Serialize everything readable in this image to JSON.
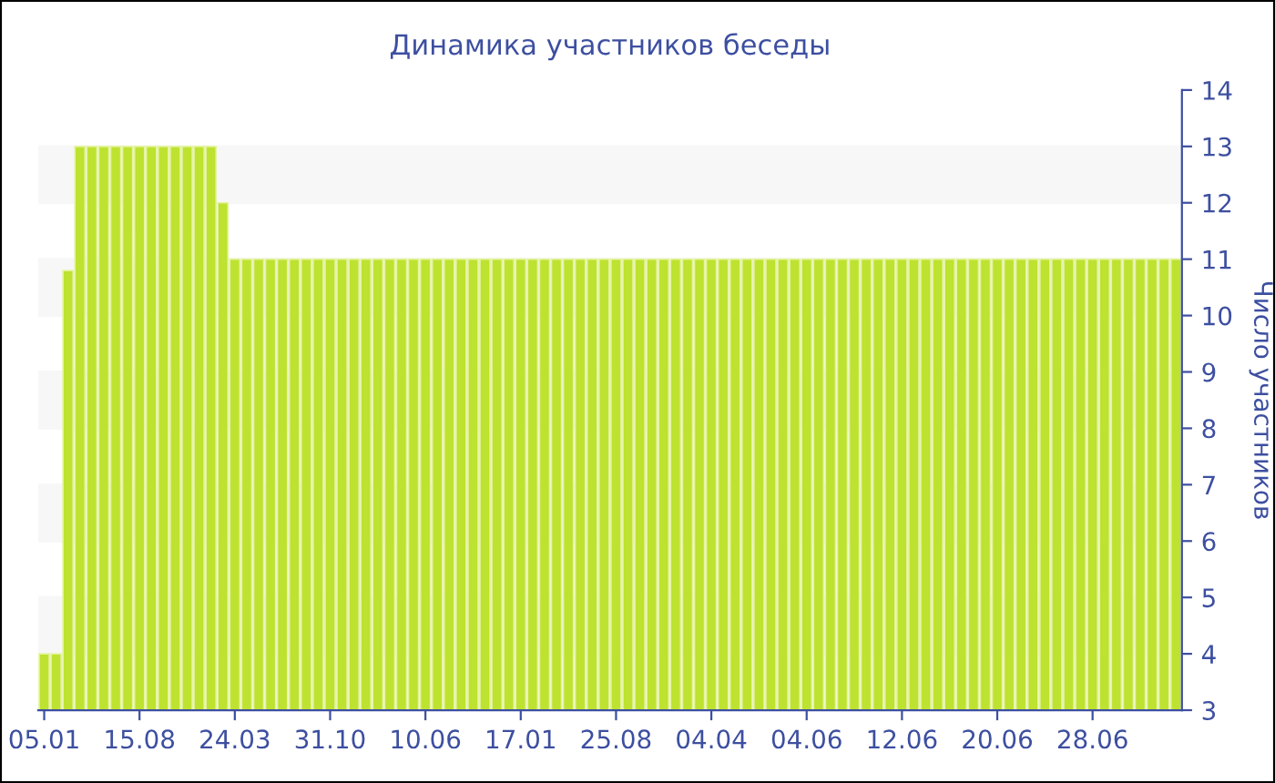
{
  "chart_data": {
    "type": "bar",
    "title": "Динамика участников беседы",
    "ylabel": "Число участников",
    "categories": [
      "05.01",
      null,
      null,
      null,
      null,
      null,
      null,
      null,
      "15.08",
      null,
      null,
      null,
      null,
      null,
      null,
      null,
      "24.03",
      null,
      null,
      null,
      null,
      null,
      null,
      null,
      "31.10",
      null,
      null,
      null,
      null,
      null,
      null,
      null,
      "10.06",
      null,
      null,
      null,
      null,
      null,
      null,
      null,
      "17.01",
      null,
      null,
      null,
      null,
      null,
      null,
      null,
      "25.08",
      null,
      null,
      null,
      null,
      null,
      null,
      null,
      "04.04",
      null,
      null,
      null,
      null,
      null,
      null,
      null,
      "04.06",
      null,
      null,
      null,
      null,
      null,
      null,
      null,
      "12.06",
      null,
      null,
      null,
      null,
      null,
      null,
      null,
      "20.06",
      null,
      null,
      null,
      null,
      null,
      null,
      null,
      "28.06",
      null,
      null,
      null,
      null,
      null,
      null,
      null
    ],
    "values": [
      4,
      4,
      10.8,
      13,
      13,
      13,
      13,
      13,
      13,
      13,
      13,
      13,
      13,
      13,
      13,
      12,
      11,
      11,
      11,
      11,
      11,
      11,
      11,
      11,
      11,
      11,
      11,
      11,
      11,
      11,
      11,
      11,
      11,
      11,
      11,
      11,
      11,
      11,
      11,
      11,
      11,
      11,
      11,
      11,
      11,
      11,
      11,
      11,
      11,
      11,
      11,
      11,
      11,
      11,
      11,
      11,
      11,
      11,
      11,
      11,
      11,
      11,
      11,
      11,
      11,
      11,
      11,
      11,
      11,
      11,
      11,
      11,
      11,
      11,
      11,
      11,
      11,
      11,
      11,
      11,
      11,
      11,
      11,
      11,
      11,
      11,
      11,
      11,
      11,
      11,
      11,
      11,
      11,
      11,
      11,
      11
    ],
    "color": "#bde22f",
    "ylim": [
      3,
      14
    ],
    "yticks": [
      3,
      4,
      5,
      6,
      7,
      8,
      9,
      10,
      11,
      12,
      13,
      14
    ],
    "bands": [
      {
        "axis": "y",
        "from": 4,
        "to": 5,
        "color": "#f7f7f7"
      },
      {
        "axis": "y",
        "from": 6,
        "to": 7,
        "color": "#f7f7f7"
      },
      {
        "axis": "y",
        "from": 8,
        "to": 9,
        "color": "#f7f7f7"
      },
      {
        "axis": "y",
        "from": 10,
        "to": 11,
        "color": "#f7f7f7"
      },
      {
        "axis": "y",
        "from": 12,
        "to": 13,
        "color": "#f7f7f7"
      }
    ]
  }
}
